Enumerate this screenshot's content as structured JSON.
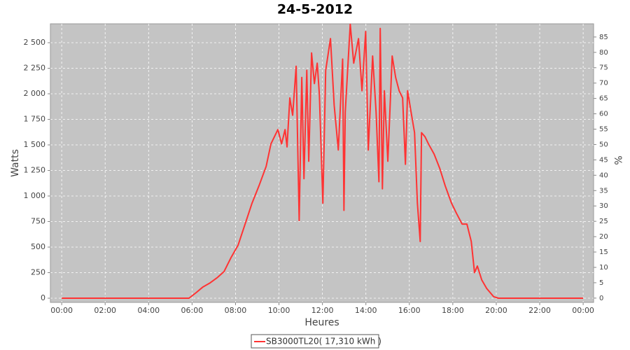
{
  "chart_data": {
    "type": "line",
    "title": "24-5-2012",
    "x_label": "Heures",
    "y_label": "Watts",
    "y2_label": "%",
    "x": [
      0,
      5.86,
      6.19,
      6.5,
      6.83,
      7.15,
      7.47,
      7.8,
      8.12,
      8.44,
      8.76,
      9.08,
      9.41,
      9.63,
      9.95,
      10.12,
      10.28,
      10.37,
      10.5,
      10.63,
      10.79,
      10.93,
      11.05,
      11.15,
      11.28,
      11.37,
      11.5,
      11.63,
      11.76,
      11.86,
      12.02,
      12.15,
      12.37,
      12.54,
      12.73,
      12.93,
      12.99,
      13.05,
      13.28,
      13.44,
      13.66,
      13.82,
      13.99,
      14.11,
      14.31,
      14.47,
      14.6,
      14.66,
      14.76,
      14.85,
      15.01,
      15.21,
      15.37,
      15.53,
      15.69,
      15.82,
      15.92,
      16.08,
      16.24,
      16.37,
      16.5,
      16.56,
      16.72,
      16.88,
      17.14,
      17.4,
      17.65,
      17.94,
      18.17,
      18.43,
      18.65,
      18.85,
      19.0,
      19.13,
      19.33,
      19.56,
      19.88,
      20.1,
      24
    ],
    "series": [
      {
        "name": "SB3000TL20( 17,310 kWh )",
        "color": "#ff3333",
        "values": [
          0,
          0,
          55,
          110,
          150,
          200,
          260,
          400,
          520,
          725,
          930,
          1100,
          1290,
          1510,
          1650,
          1510,
          1650,
          1480,
          1960,
          1790,
          2270,
          760,
          2160,
          1170,
          2230,
          1340,
          2400,
          2100,
          2300,
          1990,
          930,
          2230,
          2540,
          1890,
          1450,
          2340,
          860,
          1820,
          2680,
          2300,
          2540,
          2030,
          2610,
          1450,
          2370,
          1820,
          1140,
          2640,
          1070,
          2030,
          1340,
          2370,
          2160,
          2030,
          1960,
          1310,
          2030,
          1820,
          1620,
          930,
          555,
          1620,
          1580,
          1510,
          1410,
          1270,
          1100,
          930,
          830,
          725,
          725,
          555,
          250,
          315,
          180,
          95,
          15,
          0,
          0
        ]
      }
    ],
    "xlim": [
      -0.52,
      24.48
    ],
    "xticks": [
      {
        "value": 0,
        "label": "00:00"
      },
      {
        "value": 2,
        "label": "02:00"
      },
      {
        "value": 4,
        "label": "04:00"
      },
      {
        "value": 6,
        "label": "06:00"
      },
      {
        "value": 8,
        "label": "08:00"
      },
      {
        "value": 10,
        "label": "10:00"
      },
      {
        "value": 12,
        "label": "12:00"
      },
      {
        "value": 14,
        "label": "14:00"
      },
      {
        "value": 16,
        "label": "16:00"
      },
      {
        "value": 18,
        "label": "18:00"
      },
      {
        "value": 20,
        "label": "20:00"
      },
      {
        "value": 22,
        "label": "22:00"
      },
      {
        "value": 24,
        "label": "00:00"
      }
    ],
    "ylim": [
      -41,
      2685
    ],
    "yticks": [
      0,
      250,
      500,
      750,
      {
        "value": 1000,
        "label": "1 000"
      },
      {
        "value": 1250,
        "label": "1 250"
      },
      {
        "value": 1500,
        "label": "1 500"
      },
      {
        "value": 1750,
        "label": "1 750"
      },
      {
        "value": 2000,
        "label": "2 000"
      },
      {
        "value": 2250,
        "label": "2 250"
      },
      {
        "value": 2500,
        "label": "2 500"
      }
    ],
    "y2lim": [
      -1.4,
      89.3
    ],
    "y2ticks": [
      0,
      5,
      10,
      15,
      20,
      25,
      30,
      35,
      40,
      45,
      50,
      55,
      60,
      65,
      70,
      75,
      80,
      85
    ],
    "grid": true
  }
}
